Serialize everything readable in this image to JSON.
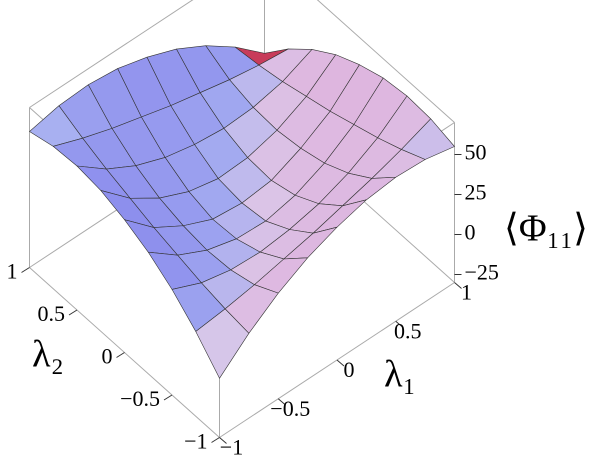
{
  "chart_data": {
    "type": "surface",
    "xlabel": "λ₁",
    "ylabel": "λ₂",
    "zlabel": "⟨Φ₁₁⟩",
    "x": [
      -1,
      -0.75,
      -0.5,
      -0.25,
      0,
      0.25,
      0.5,
      0.75,
      1
    ],
    "y": [
      -1,
      -0.75,
      -0.5,
      -0.25,
      0,
      0.25,
      0.5,
      0.75,
      1
    ],
    "z": [
      [
        7,
        23,
        36,
        46,
        53,
        58,
        60,
        59,
        55
      ],
      [
        23,
        25,
        28,
        32,
        36,
        41,
        46,
        52,
        59
      ],
      [
        36,
        28,
        24,
        23,
        25,
        29,
        36,
        46,
        60
      ],
      [
        46,
        32,
        23,
        18,
        17,
        21,
        29,
        41,
        58
      ],
      [
        53,
        36,
        25,
        17,
        15,
        17,
        25,
        36,
        53
      ],
      [
        58,
        41,
        29,
        21,
        17,
        18,
        23,
        32,
        46
      ],
      [
        60,
        46,
        36,
        29,
        25,
        23,
        24,
        28,
        36
      ],
      [
        59,
        52,
        46,
        41,
        36,
        32,
        28,
        25,
        23
      ],
      [
        55,
        59,
        60,
        58,
        53,
        46,
        36,
        23,
        7
      ]
    ],
    "xlim": [
      -1,
      1
    ],
    "ylim": [
      -1,
      1
    ],
    "zlim": [
      -30,
      70
    ],
    "xticks": [
      {
        "value": -1,
        "label": "−1"
      },
      {
        "value": -0.5,
        "label": "−0.5"
      },
      0,
      0.5,
      1
    ],
    "yticks": [
      {
        "value": -1,
        "label": "−1"
      },
      {
        "value": -0.5,
        "label": "−0.5"
      },
      0,
      0.5,
      1
    ],
    "zticks": [
      {
        "value": -25,
        "label": "−25"
      },
      0,
      25,
      50
    ]
  }
}
